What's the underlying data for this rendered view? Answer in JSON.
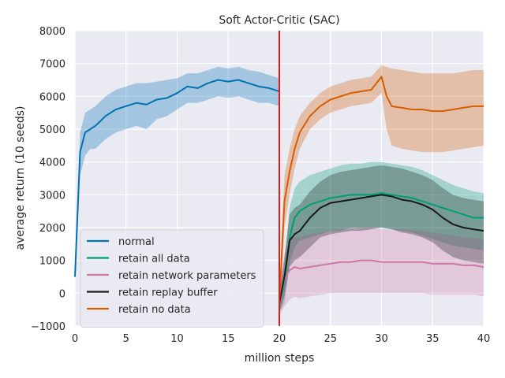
{
  "chart_data": {
    "type": "line",
    "title": "Soft Actor-Critic (SAC)",
    "xlabel": "million steps",
    "ylabel": "average return (10 seeds)",
    "xlim": [
      0,
      40
    ],
    "ylim": [
      -1000,
      8000
    ],
    "xticks": [
      0,
      5,
      10,
      15,
      20,
      25,
      30,
      35,
      40
    ],
    "xtick_labels": [
      "0",
      "5",
      "10",
      "15",
      "20",
      "25",
      "30",
      "35",
      "40"
    ],
    "yticks": [
      -1000,
      0,
      1000,
      2000,
      3000,
      4000,
      5000,
      6000,
      7000,
      8000
    ],
    "ytick_labels": [
      "−1000",
      "0",
      "1000",
      "2000",
      "3000",
      "4000",
      "5000",
      "6000",
      "7000",
      "8000"
    ],
    "grid": true,
    "legend_position": "lower-left",
    "vline": {
      "x": 20,
      "color": "#e31a1c"
    },
    "series": [
      {
        "name": "normal",
        "color": "#0072b2",
        "x": [
          0,
          0.5,
          1,
          1.5,
          2,
          3,
          4,
          5,
          6,
          7,
          8,
          9,
          10,
          11,
          12,
          13,
          14,
          15,
          16,
          17,
          18,
          19,
          20
        ],
        "y": [
          500,
          4300,
          4900,
          5000,
          5100,
          5400,
          5600,
          5700,
          5800,
          5750,
          5900,
          5950,
          6100,
          6300,
          6250,
          6400,
          6500,
          6450,
          6500,
          6400,
          6300,
          6250,
          6150
        ],
        "lower": [
          400,
          3600,
          4200,
          4400,
          4400,
          4700,
          4900,
          5000,
          5100,
          5000,
          5300,
          5400,
          5600,
          5800,
          5800,
          5900,
          6000,
          5950,
          6000,
          5900,
          5800,
          5800,
          5700
        ],
        "upper": [
          600,
          4900,
          5500,
          5600,
          5700,
          6000,
          6200,
          6300,
          6400,
          6400,
          6450,
          6500,
          6550,
          6700,
          6700,
          6800,
          6900,
          6850,
          6900,
          6800,
          6750,
          6650,
          6550
        ]
      },
      {
        "name": "retain all data",
        "color": "#009e73",
        "x": [
          20,
          20.5,
          21,
          21.5,
          22,
          23,
          24,
          25,
          26,
          27,
          28,
          29,
          30,
          31,
          32,
          33,
          34,
          35,
          36,
          37,
          38,
          39,
          40
        ],
        "y": [
          -300,
          300,
          1700,
          2300,
          2500,
          2700,
          2800,
          2900,
          2950,
          3000,
          3000,
          3000,
          3050,
          3000,
          2950,
          2900,
          2800,
          2700,
          2600,
          2500,
          2400,
          2300,
          2300
        ],
        "lower": [
          -600,
          -300,
          900,
          1400,
          1600,
          1700,
          1800,
          1900,
          1900,
          2000,
          2000,
          2000,
          2000,
          1950,
          1900,
          1850,
          1750,
          1650,
          1550,
          1450,
          1400,
          1350,
          1300
        ],
        "upper": [
          100,
          900,
          2600,
          3200,
          3400,
          3600,
          3700,
          3800,
          3900,
          3950,
          3950,
          4000,
          4000,
          3950,
          3900,
          3850,
          3750,
          3600,
          3450,
          3300,
          3200,
          3100,
          3050
        ]
      },
      {
        "name": "retain network parameters",
        "color": "#cc79a7",
        "x": [
          20,
          20.5,
          21,
          21.5,
          22,
          23,
          24,
          25,
          26,
          27,
          28,
          29,
          30,
          31,
          32,
          33,
          34,
          35,
          36,
          37,
          38,
          39,
          40
        ],
        "y": [
          -300,
          400,
          700,
          800,
          750,
          800,
          850,
          900,
          950,
          950,
          1000,
          1000,
          950,
          950,
          950,
          950,
          950,
          900,
          900,
          900,
          850,
          850,
          800
        ],
        "lower": [
          -700,
          -400,
          -200,
          -100,
          -150,
          -100,
          -50,
          0,
          0,
          0,
          0,
          0,
          0,
          0,
          0,
          0,
          0,
          -50,
          -50,
          -50,
          -50,
          -50,
          -100
        ],
        "upper": [
          100,
          1200,
          1600,
          1700,
          1700,
          1800,
          1850,
          1900,
          1950,
          1950,
          2000,
          2000,
          1950,
          1950,
          1950,
          1900,
          1900,
          1850,
          1800,
          1750,
          1700,
          1700,
          1650
        ]
      },
      {
        "name": "retain replay buffer",
        "color": "#1a1a1a",
        "x": [
          20,
          20.5,
          21,
          21.5,
          22,
          23,
          24,
          25,
          26,
          27,
          28,
          29,
          30,
          31,
          32,
          33,
          34,
          35,
          36,
          37,
          38,
          39,
          40
        ],
        "y": [
          -300,
          500,
          1600,
          1800,
          1900,
          2300,
          2600,
          2750,
          2800,
          2850,
          2900,
          2950,
          3000,
          2950,
          2850,
          2800,
          2700,
          2550,
          2300,
          2100,
          2000,
          1950,
          1900
        ],
        "lower": [
          -600,
          -100,
          800,
          1000,
          1100,
          1400,
          1700,
          1800,
          1850,
          1900,
          1900,
          1950,
          2000,
          1950,
          1850,
          1800,
          1700,
          1550,
          1300,
          1100,
          1000,
          950,
          900
        ],
        "upper": [
          0,
          1100,
          2400,
          2600,
          2700,
          3100,
          3400,
          3600,
          3700,
          3750,
          3800,
          3850,
          3900,
          3850,
          3800,
          3700,
          3600,
          3450,
          3200,
          3000,
          2900,
          2850,
          2800
        ]
      },
      {
        "name": "retain no data",
        "color": "#d55e00",
        "x": [
          20,
          20.5,
          21,
          21.5,
          22,
          23,
          24,
          25,
          26,
          27,
          28,
          29,
          30,
          30.5,
          31,
          32,
          33,
          34,
          35,
          36,
          37,
          38,
          39,
          40
        ],
        "y": [
          -300,
          2800,
          3700,
          4400,
          4900,
          5400,
          5700,
          5900,
          6000,
          6100,
          6150,
          6200,
          6600,
          6000,
          5700,
          5650,
          5600,
          5600,
          5550,
          5550,
          5600,
          5650,
          5700,
          5700
        ],
        "lower": [
          -600,
          2000,
          3000,
          3800,
          4400,
          5000,
          5300,
          5500,
          5600,
          5700,
          5750,
          5800,
          6100,
          5000,
          4500,
          4400,
          4350,
          4300,
          4300,
          4300,
          4350,
          4400,
          4450,
          4500
        ],
        "upper": [
          100,
          3600,
          4400,
          5000,
          5400,
          5800,
          6100,
          6300,
          6400,
          6500,
          6550,
          6600,
          6950,
          6900,
          6850,
          6800,
          6750,
          6700,
          6700,
          6700,
          6700,
          6750,
          6800,
          6800
        ]
      }
    ]
  }
}
